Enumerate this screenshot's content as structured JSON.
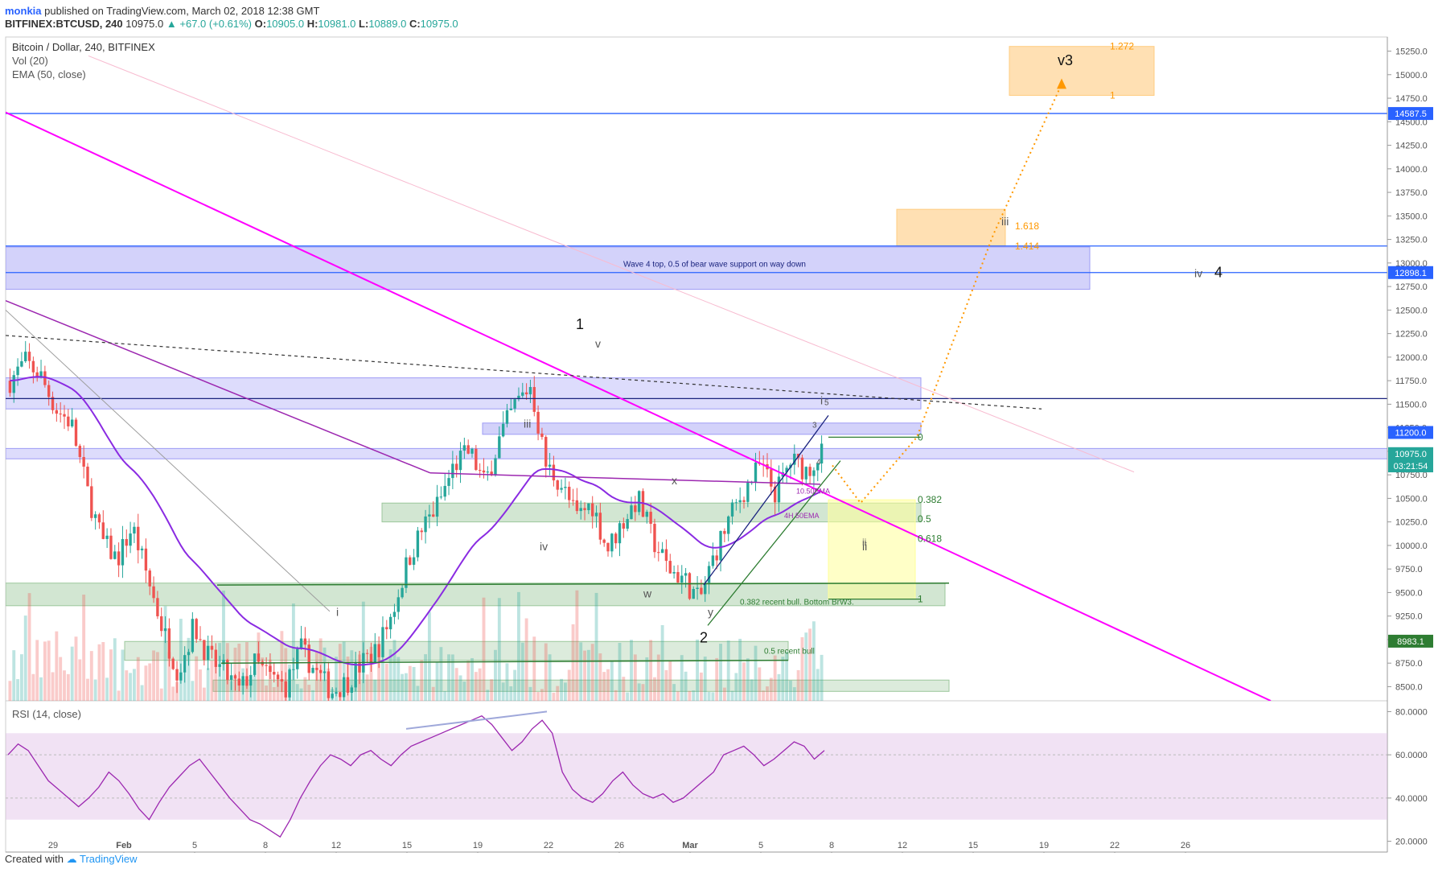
{
  "header": {
    "username": "monkia",
    "published": "published on TradingView.com, March 02, 2018 12:38 GMT",
    "symbol": "BITFINEX:BTCUSD, 240",
    "price": "10975.0",
    "change": "+67.0 (+0.61%)",
    "open": "10905.0",
    "high": "10981.0",
    "low": "10889.0",
    "close": "10975.0"
  },
  "footer": {
    "created": "Created with",
    "brand": "TradingView"
  },
  "colors": {
    "up": "#26a69a",
    "down": "#ef5350",
    "ema": "#8a2be2",
    "trendline": "#ff00ff",
    "zone_blue": "#9e9cf5",
    "zone_green": "#9cc79c",
    "orange": "#ff9800",
    "rsi": "#9c27b0"
  },
  "chart_data": [
    {
      "type": "candlestick",
      "title": "Bitcoin / Dollar, 240, BITFINEX",
      "indicators": [
        "Vol (20)",
        "EMA (50, close)"
      ],
      "x_tick_labels": [
        "29",
        "Feb",
        "5",
        "8",
        "12",
        "15",
        "19",
        "22",
        "26",
        "Mar",
        "5",
        "8",
        "12",
        "15",
        "19",
        "22",
        "26"
      ],
      "y_ticks": [
        8500,
        8750,
        9000,
        9250,
        9500,
        9750,
        10000,
        10250,
        10500,
        10750,
        11000,
        11250,
        11500,
        11750,
        12000,
        12250,
        12500,
        12750,
        13000,
        13250,
        13500,
        13750,
        14000,
        14250,
        14500,
        14750,
        15000,
        15250
      ],
      "y_tick_labels": [
        "8500.0",
        "8750.0",
        "9000.0",
        "9250.0",
        "9500.0",
        "9750.0",
        "10000.0",
        "10250.0",
        "10500.0",
        "10750.0",
        "11000.0",
        "11250.0",
        "11500.0",
        "11750.0",
        "12000.0",
        "12250.0",
        "12500.0",
        "12750.0",
        "13000.0",
        "13250.0",
        "13500.0",
        "13750.0",
        "14000.0",
        "14250.0",
        "14500.0",
        "14750.0",
        "15000.0",
        "15250.0"
      ],
      "ylim": [
        8350,
        15400
      ],
      "price_tags": [
        {
          "value": 14587.5,
          "label": "14587.5",
          "color": "#2962ff"
        },
        {
          "value": 12898.1,
          "label": "12898.1",
          "color": "#2962ff"
        },
        {
          "value": 11200.0,
          "label": "11200.0",
          "color": "#2962ff"
        },
        {
          "value": 10975.0,
          "label": "10975.0",
          "color": "#26a69a"
        },
        {
          "value": 10845,
          "label": "03:21:54",
          "color": "#26a69a"
        },
        {
          "value": 8983.1,
          "label": "8983.1",
          "color": "#2e7d32"
        }
      ],
      "fib_levels": [
        {
          "level": "0",
          "price": 11150
        },
        {
          "level": "0.382",
          "price": 10485
        },
        {
          "level": "0.5",
          "price": 10280
        },
        {
          "level": "0.618",
          "price": 10070
        },
        {
          "level": "1",
          "price": 9430
        }
      ],
      "targets": [
        {
          "label": "1.272",
          "price": 15300
        },
        {
          "label": "1",
          "price": 14780
        },
        {
          "label": "1.618",
          "price": 13390
        },
        {
          "label": "1.414",
          "price": 13180
        }
      ],
      "annotations": [
        "Wave 4 top, 0.5 of bear wave support on way down",
        "0.382 recent bull. Bottom BrW3.",
        "0.5 recent bull",
        "10.50EMA",
        "4H 50EMA"
      ],
      "wave_labels": [
        "1",
        "v",
        "2",
        "v3",
        "iii",
        "iv",
        "4",
        "i",
        "ii",
        "iii",
        "iv",
        "x",
        "w",
        "y",
        "i",
        "ii",
        "3",
        "4",
        "5"
      ],
      "price_path": [
        11750,
        11950,
        11800,
        11450,
        11300,
        10600,
        10050,
        9850,
        10200,
        9650,
        9100,
        8650,
        9150,
        8800,
        8650,
        8450,
        8750,
        8600,
        8500,
        8900,
        8650,
        8450,
        8550,
        8750,
        8900,
        9300,
        9850,
        10200,
        10450,
        10850,
        11000,
        10650,
        11150,
        11500,
        11700,
        10850,
        10650,
        10300,
        10450,
        9950,
        10250,
        10500,
        10050,
        9750,
        9650,
        9400,
        9900,
        10300,
        10600,
        10850,
        10550,
        10900,
        10800,
        10975
      ]
    },
    {
      "type": "line",
      "title": "RSI (14, close)",
      "y_tick_labels": [
        "20.0000",
        "40.0000",
        "60.0000",
        "80.0000"
      ],
      "band": [
        30,
        70
      ],
      "ylim": [
        15,
        85
      ],
      "values": [
        60,
        65,
        62,
        55,
        48,
        44,
        40,
        36,
        40,
        45,
        52,
        48,
        42,
        35,
        30,
        38,
        45,
        50,
        55,
        58,
        52,
        46,
        40,
        35,
        30,
        28,
        25,
        22,
        30,
        40,
        48,
        55,
        60,
        58,
        55,
        60,
        62,
        58,
        55,
        60,
        64,
        66,
        68,
        70,
        72,
        74,
        76,
        78,
        74,
        68,
        62,
        66,
        72,
        76,
        70,
        52,
        44,
        40,
        38,
        42,
        48,
        52,
        46,
        42,
        40,
        42,
        38,
        40,
        44,
        48,
        52,
        60,
        62,
        64,
        60,
        55,
        58,
        62,
        66,
        64,
        58,
        62
      ]
    }
  ]
}
